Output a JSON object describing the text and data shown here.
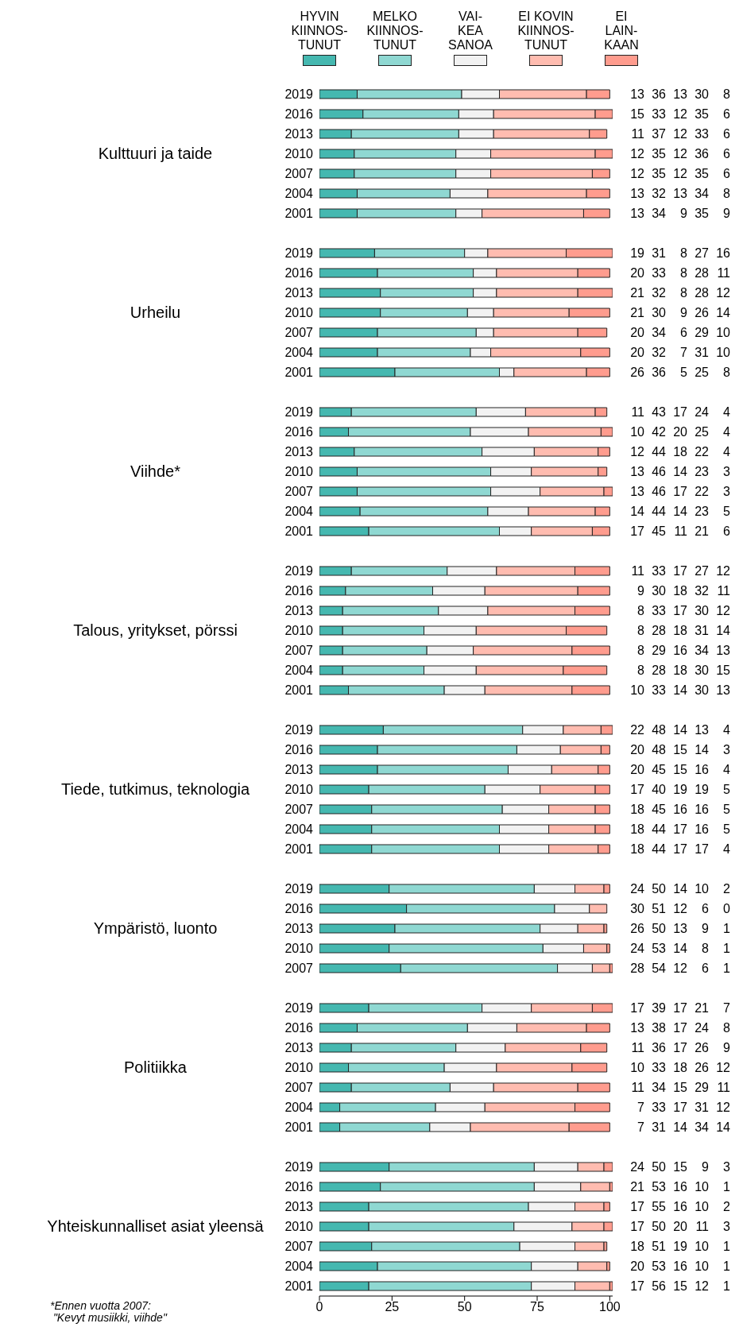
{
  "chart_data": [
    {
      "type": "bar",
      "orientation": "horizontal",
      "stacked": true,
      "legend": "top",
      "tick_labels": "y",
      "data_labels": true,
      "ylabel": "Kulttuuri ja taide",
      "xlim": [
        0,
        101
      ],
      "xticks": [
        0,
        25,
        50,
        75,
        100
      ],
      "categories": [
        "2019",
        "2016",
        "2013",
        "2010",
        "2007",
        "2004",
        "2001"
      ],
      "series": [
        {
          "name": "HYVIN\nKIINNOS-\nTUNUT",
          "color": "#45b8b0",
          "values": [
            13,
            15,
            11,
            12,
            12,
            13,
            13
          ]
        },
        {
          "name": "MELKO\nKIINNOS-\nTUNUT",
          "color": "#8fd8d2",
          "values": [
            36,
            33,
            37,
            35,
            35,
            32,
            34
          ]
        },
        {
          "name": "VAI-\nKEA\nSANOA",
          "color": "#f2f2f2",
          "values": [
            13,
            12,
            12,
            12,
            12,
            13,
            9
          ]
        },
        {
          "name": "EI KOVIN\nKIINNOS-\nTUNUT",
          "color": "#ffbcb0",
          "values": [
            30,
            35,
            33,
            36,
            35,
            34,
            35
          ]
        },
        {
          "name": "EI\nLAIN-\nKAAN",
          "color": "#ff9c8e",
          "values": [
            8,
            6,
            6,
            6,
            6,
            8,
            9
          ]
        }
      ]
    },
    {
      "type": "bar",
      "orientation": "horizontal",
      "stacked": true,
      "tick_labels": "y",
      "data_labels": true,
      "ylabel": "Urheilu",
      "xlim": [
        0,
        101
      ],
      "xticks": [
        0,
        25,
        50,
        75,
        100
      ],
      "categories": [
        "2019",
        "2016",
        "2013",
        "2010",
        "2007",
        "2004",
        "2001"
      ],
      "series": [
        {
          "color": "#45b8b0",
          "values": [
            19,
            20,
            21,
            21,
            20,
            20,
            26
          ]
        },
        {
          "color": "#8fd8d2",
          "values": [
            31,
            33,
            32,
            30,
            34,
            32,
            36
          ]
        },
        {
          "color": "#f2f2f2",
          "values": [
            8,
            8,
            8,
            9,
            6,
            7,
            5
          ]
        },
        {
          "color": "#ffbcb0",
          "values": [
            27,
            28,
            28,
            26,
            29,
            31,
            25
          ]
        },
        {
          "color": "#ff9c8e",
          "values": [
            16,
            11,
            12,
            14,
            10,
            10,
            8
          ]
        }
      ]
    },
    {
      "type": "bar",
      "orientation": "horizontal",
      "stacked": true,
      "tick_labels": "y",
      "data_labels": true,
      "ylabel": "Viihde*",
      "xlim": [
        0,
        101
      ],
      "xticks": [
        0,
        25,
        50,
        75,
        100
      ],
      "categories": [
        "2019",
        "2016",
        "2013",
        "2010",
        "2007",
        "2004",
        "2001"
      ],
      "series": [
        {
          "color": "#45b8b0",
          "values": [
            11,
            10,
            12,
            13,
            13,
            14,
            17
          ]
        },
        {
          "color": "#8fd8d2",
          "values": [
            43,
            42,
            44,
            46,
            46,
            44,
            45
          ]
        },
        {
          "color": "#f2f2f2",
          "values": [
            17,
            20,
            18,
            14,
            17,
            14,
            11
          ]
        },
        {
          "color": "#ffbcb0",
          "values": [
            24,
            25,
            22,
            23,
            22,
            23,
            21
          ]
        },
        {
          "color": "#ff9c8e",
          "values": [
            4,
            4,
            4,
            3,
            3,
            5,
            6
          ]
        }
      ]
    },
    {
      "type": "bar",
      "orientation": "horizontal",
      "stacked": true,
      "tick_labels": "y",
      "data_labels": true,
      "ylabel": "Talous, yritykset, pörssi",
      "xticks": [
        0,
        25,
        50,
        75,
        100
      ],
      "categories": [
        "2019",
        "2016",
        "2013",
        "2010",
        "2007",
        "2004",
        "2001"
      ],
      "series": [
        {
          "color": "#45b8b0",
          "values": [
            11,
            9,
            8,
            8,
            8,
            8,
            10
          ]
        },
        {
          "color": "#8fd8d2",
          "values": [
            33,
            30,
            33,
            28,
            29,
            28,
            33
          ]
        },
        {
          "color": "#f2f2f2",
          "values": [
            17,
            18,
            17,
            18,
            16,
            18,
            14
          ]
        },
        {
          "color": "#ffbcb0",
          "values": [
            27,
            32,
            30,
            31,
            34,
            30,
            30
          ]
        },
        {
          "color": "#ff9c8e",
          "values": [
            12,
            11,
            12,
            14,
            13,
            15,
            13
          ]
        }
      ]
    },
    {
      "type": "bar",
      "orientation": "horizontal",
      "stacked": true,
      "tick_labels": "y",
      "data_labels": true,
      "ylabel": "Tiede, tutkimus, teknologia",
      "xlim": [
        0,
        101
      ],
      "xticks": [
        0,
        25,
        50,
        75,
        100
      ],
      "categories": [
        "2019",
        "2016",
        "2013",
        "2010",
        "2007",
        "2004",
        "2001"
      ],
      "series": [
        {
          "color": "#45b8b0",
          "values": [
            22,
            20,
            20,
            17,
            18,
            18,
            18
          ]
        },
        {
          "color": "#8fd8d2",
          "values": [
            48,
            48,
            45,
            40,
            45,
            44,
            44
          ]
        },
        {
          "color": "#f2f2f2",
          "values": [
            14,
            15,
            15,
            19,
            16,
            17,
            17
          ]
        },
        {
          "color": "#ffbcb0",
          "values": [
            13,
            14,
            16,
            19,
            16,
            16,
            17
          ]
        },
        {
          "color": "#ff9c8e",
          "values": [
            4,
            3,
            4,
            5,
            5,
            5,
            4
          ]
        }
      ]
    },
    {
      "type": "bar",
      "orientation": "horizontal",
      "stacked": true,
      "tick_labels": "y",
      "data_labels": true,
      "ylabel": "Ympäristö, luonto",
      "xlim": [
        0,
        101
      ],
      "xticks": [
        0,
        25,
        50,
        75,
        100
      ],
      "categories": [
        "2019",
        "2016",
        "2013",
        "2010",
        "2007"
      ],
      "series": [
        {
          "color": "#45b8b0",
          "values": [
            24,
            30,
            26,
            24,
            28
          ]
        },
        {
          "color": "#8fd8d2",
          "values": [
            50,
            51,
            50,
            53,
            54
          ]
        },
        {
          "color": "#f2f2f2",
          "values": [
            14,
            12,
            13,
            14,
            12
          ]
        },
        {
          "color": "#ffbcb0",
          "values": [
            10,
            6,
            9,
            8,
            6
          ]
        },
        {
          "color": "#ff9c8e",
          "values": [
            2,
            0,
            1,
            1,
            1
          ]
        }
      ]
    },
    {
      "type": "bar",
      "orientation": "horizontal",
      "stacked": true,
      "tick_labels": "y",
      "data_labels": true,
      "ylabel": "Politiikka",
      "xlim": [
        0,
        101
      ],
      "xticks": [
        0,
        25,
        50,
        75,
        100
      ],
      "categories": [
        "2019",
        "2016",
        "2013",
        "2010",
        "2007",
        "2004",
        "2001"
      ],
      "series": [
        {
          "color": "#45b8b0",
          "values": [
            17,
            13,
            11,
            10,
            11,
            7,
            7
          ]
        },
        {
          "color": "#8fd8d2",
          "values": [
            39,
            38,
            36,
            33,
            34,
            33,
            31
          ]
        },
        {
          "color": "#f2f2f2",
          "values": [
            17,
            17,
            17,
            18,
            15,
            17,
            14
          ]
        },
        {
          "color": "#ffbcb0",
          "values": [
            21,
            24,
            26,
            26,
            29,
            31,
            34
          ]
        },
        {
          "color": "#ff9c8e",
          "values": [
            7,
            8,
            9,
            12,
            11,
            12,
            14
          ]
        }
      ]
    },
    {
      "type": "bar",
      "orientation": "horizontal",
      "stacked": true,
      "data_labels": true,
      "ylabel": "Yhteiskunnalliset asiat yleensä",
      "xlim": [
        0,
        101
      ],
      "xticks": [
        0,
        25,
        50,
        75,
        100
      ],
      "annotations": [
        "*Ennen vuotta 2007:\n \"Kevyt musiikki, viihde\""
      ],
      "categories": [
        "2019",
        "2016",
        "2013",
        "2010",
        "2007",
        "2004",
        "2001"
      ],
      "series": [
        {
          "color": "#45b8b0",
          "values": [
            24,
            21,
            17,
            17,
            18,
            20,
            17
          ]
        },
        {
          "color": "#8fd8d2",
          "values": [
            50,
            53,
            55,
            50,
            51,
            53,
            56
          ]
        },
        {
          "color": "#f2f2f2",
          "values": [
            15,
            16,
            16,
            20,
            19,
            16,
            15
          ]
        },
        {
          "color": "#ffbcb0",
          "values": [
            9,
            10,
            10,
            11,
            10,
            10,
            12
          ]
        },
        {
          "color": "#ff9c8e",
          "values": [
            3,
            1,
            2,
            3,
            1,
            1,
            1
          ]
        }
      ]
    }
  ]
}
